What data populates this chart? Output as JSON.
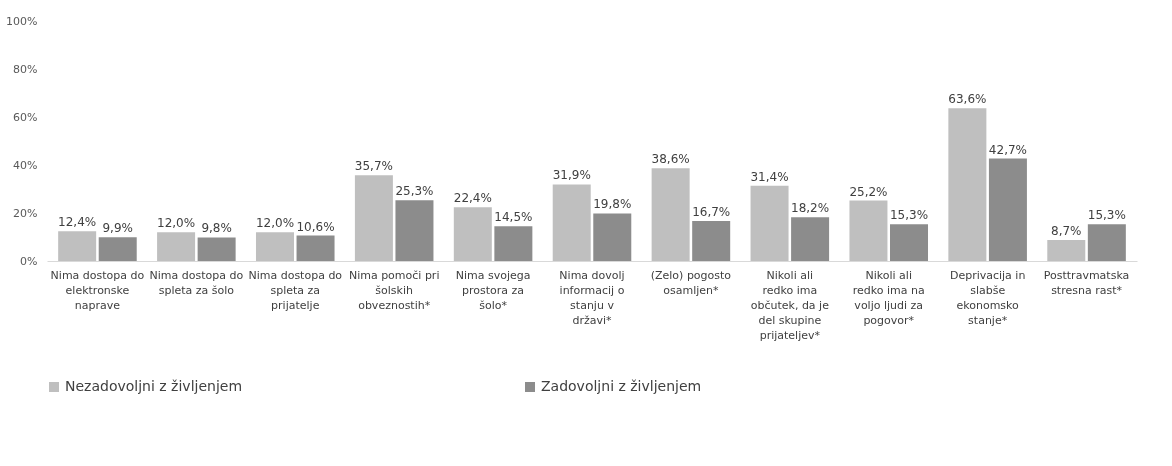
{
  "chart_data": {
    "type": "bar",
    "categories": [
      "Nima dostopa do elektronske naprave",
      "Nima dostopa do spleta za šolo",
      "Nima dostopa do spleta za prijatelje",
      "Nima pomoči pri šolskih obveznostih*",
      "Nima svojega prostora za šolo*",
      "Nima dovolj informacij o stanju v državi*",
      "(Zelo) pogosto osamljen*",
      "Nikoli ali redko ima občutek, da je del skupine prijateljev*",
      "Nikoli ali redko ima na voljo ljudi za pogovor*",
      "Deprivacija in slabše ekonomsko stanje*",
      "Posttravmatska stresna rast*"
    ],
    "series": [
      {
        "name": "Nezadovoljni z življenjem",
        "color": "#bfbfbf",
        "values": [
          12.4,
          12.0,
          12.0,
          35.7,
          22.4,
          31.9,
          38.6,
          31.4,
          25.2,
          63.6,
          8.7
        ],
        "value_labels": [
          "12,4%",
          "12,0%",
          "12,0%",
          "35,7%",
          "22,4%",
          "31,9%",
          "38,6%",
          "31,4%",
          "25,2%",
          "63,6%",
          "8,7%"
        ]
      },
      {
        "name": "Zadovoljni z življenjem",
        "color": "#8c8c8c",
        "values": [
          9.9,
          9.8,
          10.6,
          25.3,
          14.5,
          19.8,
          16.7,
          18.2,
          15.3,
          42.7,
          15.3
        ],
        "value_labels": [
          "9,9%",
          "9,8%",
          "10,6%",
          "25,3%",
          "14,5%",
          "19,8%",
          "16,7%",
          "18,2%",
          "15,3%",
          "42,7%",
          "15,3%"
        ]
      }
    ],
    "ylim": [
      0,
      100
    ],
    "yticks": [
      {
        "value": 0,
        "label": "0%"
      },
      {
        "value": 20,
        "label": "20%"
      },
      {
        "value": 40,
        "label": "40%"
      },
      {
        "value": 60,
        "label": "60%"
      },
      {
        "value": 80,
        "label": "80%"
      },
      {
        "value": 100,
        "label": "100%"
      }
    ],
    "grid": false,
    "legend": "bottom"
  }
}
